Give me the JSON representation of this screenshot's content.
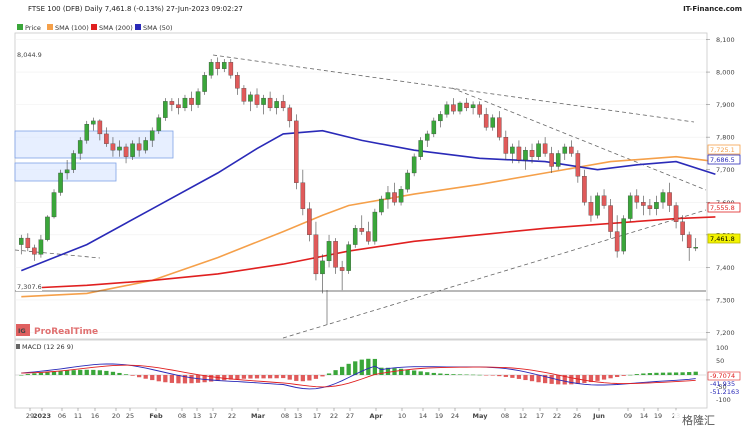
{
  "header": {
    "title": "FTSE 100 (DFB) Daily 7,461.8 (-0.13%) 27-Jun-2023 09:02:27",
    "brand": "IT-Finance.com"
  },
  "legend": {
    "items": [
      {
        "label": "Price",
        "color": "#3aa63a"
      },
      {
        "label": "SMA (100)",
        "color": "#f5a04a"
      },
      {
        "label": "SMA (200)",
        "color": "#e02020"
      },
      {
        "label": "SMA (50)",
        "color": "#2a2ab8"
      }
    ]
  },
  "watermark": {
    "logo": "IG",
    "text": "ProRealTime"
  },
  "macd": {
    "label": "MACD (12 26 9)",
    "ticks": [
      "100",
      "50",
      "-50",
      "-100"
    ],
    "tags": [
      "-9.7074",
      "-51.2163",
      "-41.935"
    ]
  },
  "price_tags": {
    "sma100": "7,725.1",
    "sma50": "7,686.5",
    "sma200": "7,555.8",
    "last": "7,461.8",
    "high_marker": "8,044.9",
    "low_marker": "7,307.6"
  },
  "footer": {
    "badge": "格隆汇"
  },
  "chart_data": {
    "type": "candlestick",
    "title": "FTSE 100 (DFB) Daily 7,461.8 (-0.13%) 27-Jun-2023 09:02:27",
    "y_ticks": [
      "8,100",
      "8,000",
      "7,900",
      "7,800",
      "7,700",
      "7,600",
      "7,500",
      "7,400",
      "7,300",
      "7,200"
    ],
    "ylim": [
      7180,
      8120
    ],
    "x_ticks": [
      "29",
      "2023",
      "06",
      "11",
      "16",
      "20",
      "25",
      "Feb",
      "08",
      "13",
      "17",
      "22",
      "Mar",
      "08",
      "13",
      "17",
      "22",
      "27",
      "Apr",
      "10",
      "14",
      "19",
      "24",
      "May",
      "08",
      "12",
      "17",
      "22",
      "26",
      "Jun",
      "09",
      "14",
      "19",
      "23"
    ],
    "start_date": "2022-12-28",
    "ohlc": [
      [
        7470,
        7500,
        7440,
        7490
      ],
      [
        7490,
        7505,
        7450,
        7460
      ],
      [
        7460,
        7470,
        7420,
        7440
      ],
      [
        7440,
        7500,
        7430,
        7485
      ],
      [
        7485,
        7560,
        7480,
        7555
      ],
      [
        7555,
        7640,
        7550,
        7630
      ],
      [
        7630,
        7700,
        7620,
        7690
      ],
      [
        7690,
        7730,
        7670,
        7700
      ],
      [
        7700,
        7760,
        7690,
        7750
      ],
      [
        7750,
        7800,
        7730,
        7790
      ],
      [
        7790,
        7850,
        7780,
        7840
      ],
      [
        7840,
        7860,
        7820,
        7850
      ],
      [
        7850,
        7855,
        7790,
        7810
      ],
      [
        7810,
        7830,
        7770,
        7780
      ],
      [
        7780,
        7800,
        7740,
        7760
      ],
      [
        7760,
        7790,
        7740,
        7770
      ],
      [
        7770,
        7780,
        7720,
        7740
      ],
      [
        7740,
        7790,
        7730,
        7780
      ],
      [
        7780,
        7800,
        7740,
        7760
      ],
      [
        7760,
        7800,
        7750,
        7790
      ],
      [
        7790,
        7830,
        7770,
        7820
      ],
      [
        7820,
        7870,
        7810,
        7860
      ],
      [
        7860,
        7920,
        7850,
        7910
      ],
      [
        7910,
        7920,
        7880,
        7900
      ],
      [
        7900,
        7920,
        7870,
        7890
      ],
      [
        7890,
        7930,
        7880,
        7920
      ],
      [
        7920,
        7940,
        7880,
        7900
      ],
      [
        7900,
        7950,
        7890,
        7940
      ],
      [
        7940,
        8000,
        7930,
        7990
      ],
      [
        7990,
        8040,
        7980,
        8030
      ],
      [
        8030,
        8045,
        7990,
        8010
      ],
      [
        8010,
        8040,
        8000,
        8030
      ],
      [
        8030,
        8040,
        7980,
        7990
      ],
      [
        7990,
        8000,
        7930,
        7950
      ],
      [
        7950,
        7960,
        7900,
        7910
      ],
      [
        7910,
        7940,
        7880,
        7930
      ],
      [
        7930,
        7950,
        7890,
        7900
      ],
      [
        7900,
        7930,
        7870,
        7920
      ],
      [
        7920,
        7940,
        7880,
        7890
      ],
      [
        7890,
        7920,
        7870,
        7910
      ],
      [
        7910,
        7930,
        7880,
        7890
      ],
      [
        7890,
        7900,
        7830,
        7850
      ],
      [
        7850,
        7870,
        7640,
        7660
      ],
      [
        7660,
        7700,
        7560,
        7580
      ],
      [
        7580,
        7600,
        7480,
        7500
      ],
      [
        7500,
        7540,
        7360,
        7380
      ],
      [
        7380,
        7440,
        7320,
        7420
      ],
      [
        7420,
        7500,
        7400,
        7480
      ],
      [
        7480,
        7490,
        7380,
        7400
      ],
      [
        7400,
        7420,
        7330,
        7390
      ],
      [
        7390,
        7480,
        7380,
        7470
      ],
      [
        7470,
        7530,
        7460,
        7520
      ],
      [
        7520,
        7560,
        7500,
        7510
      ],
      [
        7510,
        7540,
        7470,
        7480
      ],
      [
        7480,
        7580,
        7470,
        7570
      ],
      [
        7570,
        7620,
        7560,
        7610
      ],
      [
        7610,
        7650,
        7580,
        7630
      ],
      [
        7630,
        7660,
        7590,
        7600
      ],
      [
        7600,
        7650,
        7590,
        7640
      ],
      [
        7640,
        7700,
        7630,
        7690
      ],
      [
        7690,
        7750,
        7680,
        7740
      ],
      [
        7740,
        7800,
        7730,
        7790
      ],
      [
        7790,
        7820,
        7770,
        7810
      ],
      [
        7810,
        7860,
        7800,
        7850
      ],
      [
        7850,
        7880,
        7830,
        7870
      ],
      [
        7870,
        7910,
        7860,
        7900
      ],
      [
        7900,
        7920,
        7870,
        7880
      ],
      [
        7880,
        7910,
        7870,
        7905
      ],
      [
        7905,
        7920,
        7880,
        7890
      ],
      [
        7890,
        7910,
        7870,
        7900
      ],
      [
        7900,
        7910,
        7860,
        7870
      ],
      [
        7870,
        7890,
        7820,
        7830
      ],
      [
        7830,
        7870,
        7820,
        7860
      ],
      [
        7860,
        7880,
        7790,
        7800
      ],
      [
        7800,
        7820,
        7730,
        7750
      ],
      [
        7750,
        7780,
        7720,
        7770
      ],
      [
        7770,
        7790,
        7720,
        7730
      ],
      [
        7730,
        7770,
        7700,
        7760
      ],
      [
        7760,
        7780,
        7720,
        7740
      ],
      [
        7740,
        7790,
        7730,
        7780
      ],
      [
        7780,
        7800,
        7740,
        7750
      ],
      [
        7750,
        7770,
        7690,
        7710
      ],
      [
        7710,
        7760,
        7700,
        7750
      ],
      [
        7750,
        7780,
        7730,
        7770
      ],
      [
        7770,
        7790,
        7740,
        7750
      ],
      [
        7750,
        7760,
        7660,
        7680
      ],
      [
        7680,
        7700,
        7590,
        7600
      ],
      [
        7600,
        7620,
        7540,
        7560
      ],
      [
        7560,
        7630,
        7550,
        7620
      ],
      [
        7620,
        7640,
        7580,
        7590
      ],
      [
        7590,
        7610,
        7490,
        7510
      ],
      [
        7510,
        7560,
        7430,
        7450
      ],
      [
        7450,
        7560,
        7440,
        7550
      ],
      [
        7550,
        7630,
        7540,
        7620
      ],
      [
        7620,
        7640,
        7580,
        7600
      ],
      [
        7600,
        7620,
        7560,
        7590
      ],
      [
        7590,
        7610,
        7560,
        7580
      ],
      [
        7580,
        7620,
        7560,
        7600
      ],
      [
        7600,
        7640,
        7580,
        7630
      ],
      [
        7630,
        7660,
        7570,
        7590
      ],
      [
        7590,
        7600,
        7520,
        7540
      ],
      [
        7540,
        7560,
        7480,
        7500
      ],
      [
        7500,
        7510,
        7420,
        7460
      ],
      [
        7460,
        7490,
        7450,
        7462
      ]
    ],
    "series": [
      {
        "name": "SMA (100)",
        "color": "#f5a04a",
        "points": [
          [
            0,
            7310
          ],
          [
            10,
            7320
          ],
          [
            20,
            7360
          ],
          [
            30,
            7430
          ],
          [
            40,
            7510
          ],
          [
            46,
            7560
          ],
          [
            50,
            7590
          ],
          [
            60,
            7625
          ],
          [
            70,
            7655
          ],
          [
            80,
            7690
          ],
          [
            90,
            7725
          ],
          [
            100,
            7740
          ],
          [
            106,
            7725
          ]
        ]
      },
      {
        "name": "SMA (200)",
        "color": "#e02020",
        "points": [
          [
            0,
            7335
          ],
          [
            10,
            7345
          ],
          [
            20,
            7360
          ],
          [
            30,
            7380
          ],
          [
            40,
            7410
          ],
          [
            50,
            7450
          ],
          [
            60,
            7480
          ],
          [
            70,
            7500
          ],
          [
            80,
            7520
          ],
          [
            90,
            7535
          ],
          [
            100,
            7550
          ],
          [
            106,
            7555
          ]
        ]
      },
      {
        "name": "SMA (50)",
        "color": "#2a2ab8",
        "points": [
          [
            0,
            7390
          ],
          [
            10,
            7470
          ],
          [
            20,
            7580
          ],
          [
            30,
            7690
          ],
          [
            36,
            7765
          ],
          [
            40,
            7810
          ],
          [
            46,
            7820
          ],
          [
            52,
            7790
          ],
          [
            60,
            7760
          ],
          [
            70,
            7735
          ],
          [
            80,
            7725
          ],
          [
            88,
            7700
          ],
          [
            94,
            7715
          ],
          [
            100,
            7725
          ],
          [
            106,
            7686
          ]
        ]
      }
    ],
    "grid": true,
    "legend_position": "top-left"
  }
}
